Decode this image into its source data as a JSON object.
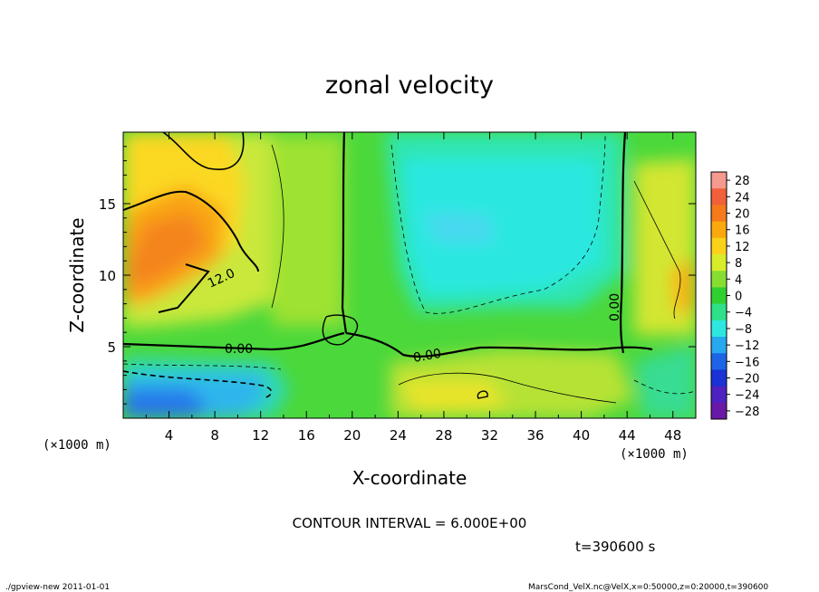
{
  "chart_data": {
    "type": "heatmap",
    "title": "zonal velocity",
    "xlabel": "X-coordinate",
    "ylabel": "Z-coordinate",
    "x_unit": "(×1000 m)",
    "xlim": [
      0,
      50
    ],
    "ylim": [
      0,
      20
    ],
    "x_ticks": [
      4,
      8,
      12,
      16,
      20,
      24,
      28,
      32,
      36,
      40,
      44,
      48
    ],
    "y_ticks": [
      5,
      10,
      15
    ],
    "colorbar": {
      "levels": [
        28,
        24,
        20,
        16,
        12,
        8,
        4,
        0,
        -4,
        -8,
        -12,
        -16,
        -20,
        -24,
        -28
      ],
      "labels": [
        "28",
        "24",
        "20",
        "16",
        "12",
        "8",
        "4",
        "0",
        "−4",
        "−8",
        "−12",
        "−16",
        "−20",
        "−24",
        "−28"
      ],
      "colors": [
        "#f59a8e",
        "#f2603a",
        "#f47a1c",
        "#f9a90e",
        "#fbd21a",
        "#d8ec2a",
        "#88dd33",
        "#30d030",
        "#2ee088",
        "#2ee8e0",
        "#28a8ee",
        "#1e64e6",
        "#1a32d6",
        "#4e22c0",
        "#6a18a6"
      ]
    },
    "contour_interval": 6,
    "contour_labels": [
      "12.0",
      "0.00",
      "0.00",
      "0.00"
    ]
  },
  "footer": {
    "contour_interval_text": "CONTOUR INTERVAL = 6.000E+00",
    "time_text": "t=390600 s",
    "program": "./gpview-new   2011-01-01",
    "source": "MarsCond_VelX.nc@VelX,x=0:50000,z=0:20000,t=390600"
  }
}
